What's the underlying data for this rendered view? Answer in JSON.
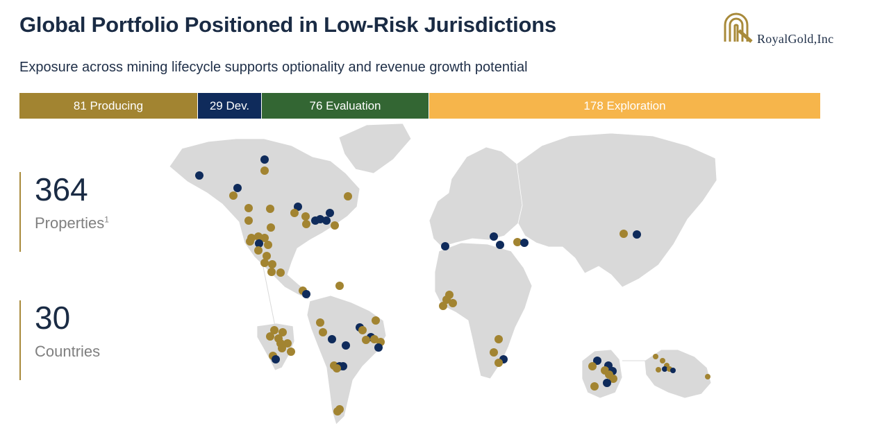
{
  "header": {
    "title": "Global Portfolio Positioned in Low-Risk Jurisdictions",
    "subtitle": "Exposure across mining lifecycle supports optionality and revenue growth potential"
  },
  "logo": {
    "text": "RoyalGold,Inc",
    "icon": "royal-gold-arch-icon",
    "color": "#a88a3a"
  },
  "stages": [
    {
      "label": "81 Producing",
      "color": "#a28431"
    },
    {
      "label": "29 Dev.",
      "color": "#0f2b5b"
    },
    {
      "label": "76 Evaluation",
      "color": "#336633"
    },
    {
      "label": "178 Exploration",
      "color": "#f6b54b"
    }
  ],
  "stats": [
    {
      "value": "364",
      "label": "Properties",
      "footnote": "1"
    },
    {
      "value": "30",
      "label": "Countries"
    }
  ],
  "map": {
    "land_color": "#d9d9d9",
    "marker_colors": {
      "gold": "#a28431",
      "navy": "#0f2b5b"
    }
  }
}
